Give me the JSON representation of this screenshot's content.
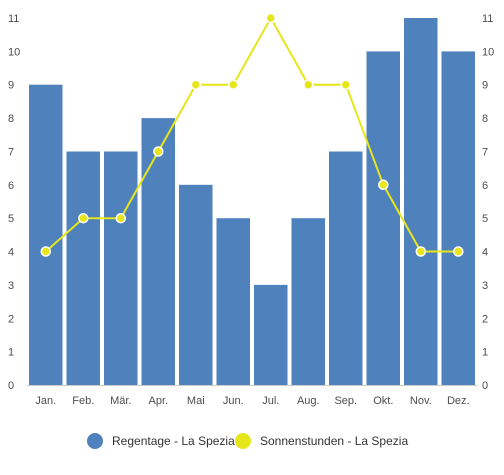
{
  "chart_data": {
    "type": "bar",
    "categories": [
      "Jan.",
      "Feb.",
      "Mär.",
      "Apr.",
      "Mai",
      "Jun.",
      "Jul.",
      "Aug.",
      "Sep.",
      "Okt.",
      "Nov.",
      "Dez."
    ],
    "series": [
      {
        "name": "Regentage - La Spezia",
        "type": "bar",
        "color": "#4f81bd",
        "values": [
          9,
          7,
          7,
          8,
          6,
          5,
          3,
          5,
          7,
          10,
          11,
          10
        ]
      },
      {
        "name": "Sonnenstunden - La Spezia",
        "type": "line",
        "color": "#e6e61a",
        "values": [
          4,
          5,
          5,
          7,
          9,
          9,
          11,
          9,
          9,
          6,
          4,
          4
        ]
      }
    ],
    "yticks": [
      "0",
      "1",
      "2",
      "3",
      "4",
      "5",
      "6",
      "7",
      "8",
      "9",
      "10",
      "11"
    ],
    "ylim": [
      0,
      11
    ],
    "grid": false,
    "legend": "bottom"
  }
}
